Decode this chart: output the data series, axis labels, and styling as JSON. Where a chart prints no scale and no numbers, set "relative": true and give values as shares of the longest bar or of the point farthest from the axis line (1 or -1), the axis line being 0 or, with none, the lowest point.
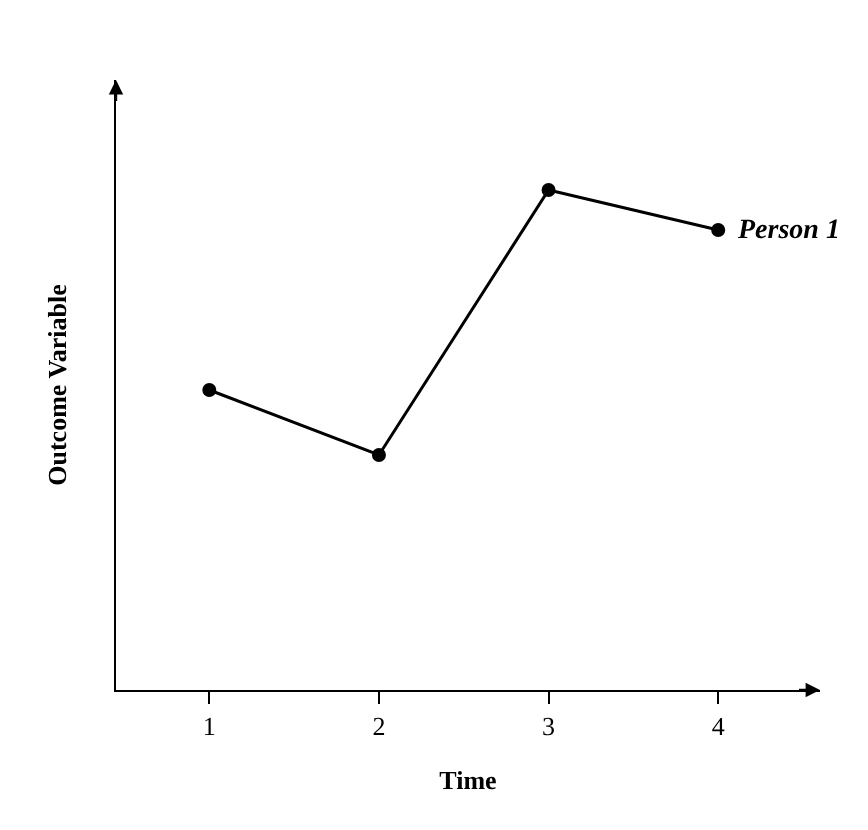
{
  "chart_data": {
    "type": "line",
    "xlabel": "Time",
    "ylabel": "Outcome Variable",
    "relative": true,
    "x": [
      1,
      2,
      3,
      4
    ],
    "xlim": [
      0.45,
      4.6
    ],
    "xticks": [
      1,
      2,
      3,
      4
    ],
    "marker": "circle",
    "line_style": "solid",
    "legend": false,
    "series": [
      {
        "name": "Person 1",
        "color": "#000000",
        "values": [
          0.6,
          0.47,
          1,
          0.92
        ]
      }
    ]
  }
}
